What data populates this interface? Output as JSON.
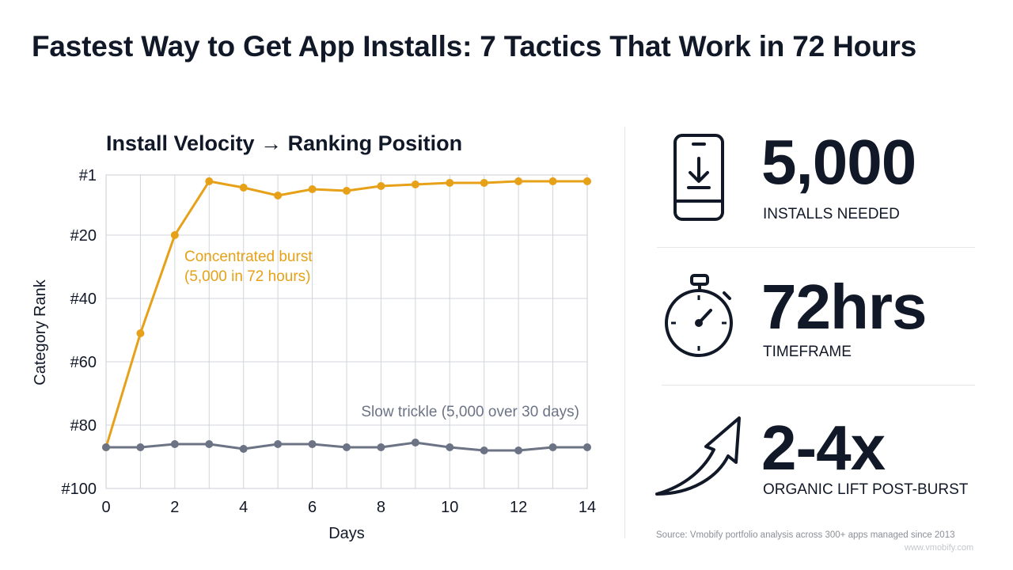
{
  "title": "Fastest Way to Get App Installs: 7 Tactics That Work in 72 Hours",
  "chart_data": {
    "type": "line",
    "title": "Install Velocity → Ranking Position",
    "xlabel": "Days",
    "ylabel": "Category Rank",
    "xlim": [
      0,
      14
    ],
    "ylim": [
      1,
      100
    ],
    "y_inverted": true,
    "x_ticks": [
      0,
      2,
      4,
      6,
      8,
      10,
      12,
      14
    ],
    "y_ticks": [
      {
        "value": 1,
        "label": "#1"
      },
      {
        "value": 20,
        "label": "#20"
      },
      {
        "value": 40,
        "label": "#40"
      },
      {
        "value": 60,
        "label": "#60"
      },
      {
        "value": 80,
        "label": "#80"
      },
      {
        "value": 100,
        "label": "#100"
      }
    ],
    "grid": true,
    "x": [
      0,
      1,
      2,
      3,
      4,
      5,
      6,
      7,
      8,
      9,
      10,
      11,
      12,
      13,
      14
    ],
    "series": [
      {
        "label": "Concentrated burst (5,000 in 72 hours)",
        "label_lines": [
          "Concentrated burst",
          "(5,000 in 72 hours)"
        ],
        "color": "#e6a118",
        "values": [
          87,
          51,
          20,
          3,
          5,
          7.5,
          5.5,
          6,
          4.5,
          4,
          3.5,
          3.5,
          3,
          3,
          3
        ]
      },
      {
        "label": "Slow trickle (5,000 over 30 days)",
        "label_lines": [
          "Slow trickle (5,000 over 30 days)"
        ],
        "color": "#6b7385",
        "values": [
          87,
          87,
          86,
          86,
          87.5,
          86,
          86,
          87,
          87,
          85.5,
          87,
          88,
          88,
          87,
          87
        ]
      }
    ]
  },
  "stats": [
    {
      "value": "5,000",
      "label": "INSTALLS NEEDED",
      "icon": "phone-download-icon"
    },
    {
      "value": "72hrs",
      "label": "TIMEFRAME",
      "icon": "stopwatch-icon"
    },
    {
      "value": "2-4x",
      "label": "ORGANIC LIFT POST-BURST",
      "icon": "curved-arrow-up-icon"
    }
  ],
  "source": "Source: Vmobify portfolio analysis across 300+ apps managed since 2013",
  "watermark": "www.vmobify.com",
  "colors": {
    "burst": "#e6a118",
    "trickle": "#6b7385",
    "text": "#111827",
    "grid": "#d1d5db"
  }
}
